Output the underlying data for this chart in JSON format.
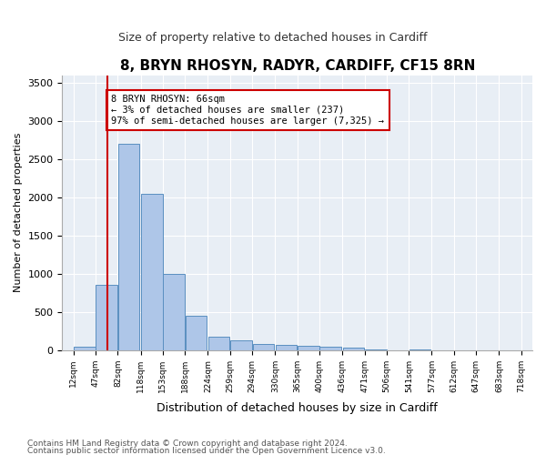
{
  "title": "8, BRYN RHOSYN, RADYR, CARDIFF, CF15 8RN",
  "subtitle": "Size of property relative to detached houses in Cardiff",
  "xlabel": "Distribution of detached houses by size in Cardiff",
  "ylabel": "Number of detached properties",
  "bins": [
    12,
    47,
    82,
    118,
    153,
    188,
    224,
    259,
    294,
    330,
    365,
    400,
    436,
    471,
    506,
    541,
    577,
    612,
    647,
    683,
    718
  ],
  "counts": [
    50,
    850,
    2700,
    2050,
    1000,
    450,
    180,
    130,
    80,
    70,
    55,
    50,
    35,
    5,
    0,
    5,
    0,
    0,
    0,
    0
  ],
  "bar_color": "#aec6e8",
  "bar_edge_color": "#5a8fc0",
  "property_size": 66,
  "red_line_color": "#cc0000",
  "annotation_text": "8 BRYN RHOSYN: 66sqm\n← 3% of detached houses are smaller (237)\n97% of semi-detached houses are larger (7,325) →",
  "annotation_box_color": "#ffffff",
  "annotation_box_edge_color": "#cc0000",
  "ylim": [
    0,
    3600
  ],
  "yticks": [
    0,
    500,
    1000,
    1500,
    2000,
    2500,
    3000,
    3500
  ],
  "background_color": "#e8eef5",
  "footer1": "Contains HM Land Registry data © Crown copyright and database right 2024.",
  "footer2": "Contains public sector information licensed under the Open Government Licence v3.0.",
  "tick_labels": [
    "12sqm",
    "47sqm",
    "82sqm",
    "118sqm",
    "153sqm",
    "188sqm",
    "224sqm",
    "259sqm",
    "294sqm",
    "330sqm",
    "365sqm",
    "400sqm",
    "436sqm",
    "471sqm",
    "506sqm",
    "541sqm",
    "577sqm",
    "612sqm",
    "647sqm",
    "683sqm",
    "718sqm"
  ]
}
